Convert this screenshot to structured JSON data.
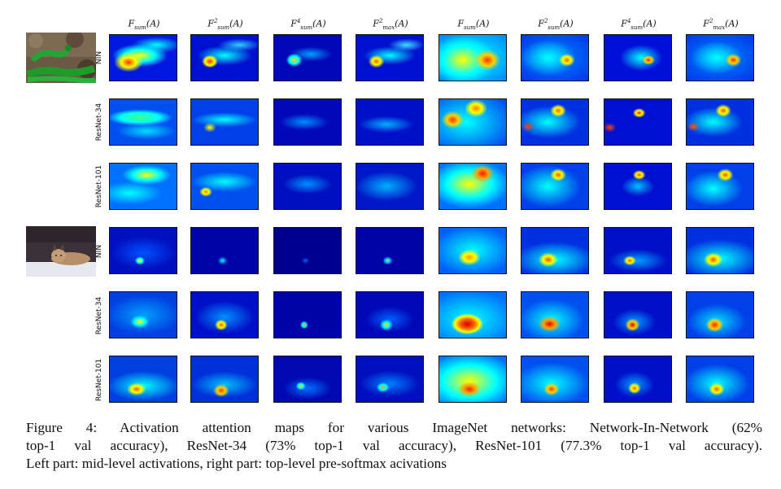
{
  "column_headers": [
    {
      "base": "F",
      "sub": "sum",
      "sup": "",
      "arg": "(A)"
    },
    {
      "base": "F",
      "sub": "sum",
      "sup": "2",
      "arg": "(A)"
    },
    {
      "base": "F",
      "sub": "sum",
      "sup": "4",
      "arg": "(A)"
    },
    {
      "base": "F",
      "sub": "max",
      "sup": "2",
      "arg": "(A)"
    },
    {
      "base": "F",
      "sub": "sum",
      "sup": "",
      "arg": "(A)"
    },
    {
      "base": "F",
      "sub": "sum",
      "sup": "2",
      "arg": "(A)"
    },
    {
      "base": "F",
      "sub": "sum",
      "sup": "4",
      "arg": "(A)"
    },
    {
      "base": "F",
      "sub": "max",
      "sup": "2",
      "arg": "(A)"
    }
  ],
  "row_labels": [
    "NIN",
    "ResNet-34",
    "ResNet-101",
    "NIN",
    "ResNet-34",
    "ResNet-101"
  ],
  "images": [
    {
      "name": "green snake photo",
      "rows": [
        0,
        1,
        2
      ]
    },
    {
      "name": "lynx in snow photo",
      "rows": [
        3,
        4,
        5
      ]
    }
  ],
  "caption": {
    "lines": [
      "Figure 4:  Activation attention maps for various ImageNet networks:  Network-In-Network (62%",
      "top-1 val accuracy), ResNet-34 (73% top-1 val accuracy), ResNet-101 (77.3% top-1 val accuracy).",
      "Left part: mid-level activations, right part: top-level pre-softmax acivations"
    ]
  },
  "colors": {
    "jet_dark": "#00007f",
    "jet_blue": "#0000ff",
    "jet_cyan": "#00ffff",
    "jet_yellow": "#ffff00",
    "jet_red": "#ff0000"
  }
}
